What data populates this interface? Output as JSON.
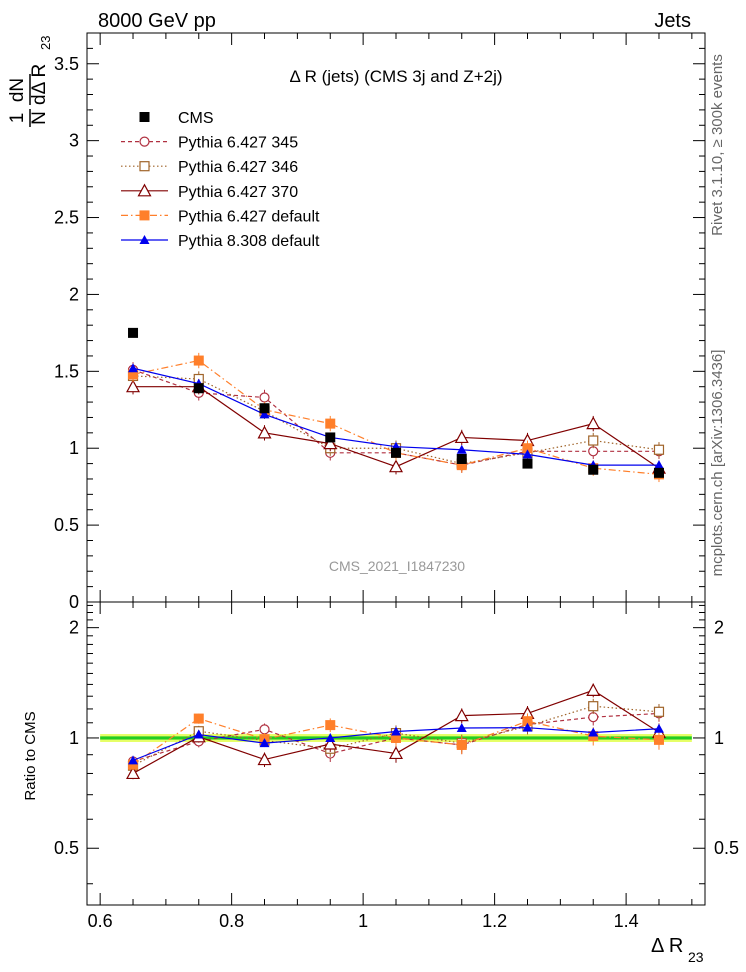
{
  "header": {
    "left": "8000 GeV pp",
    "right": "Jets"
  },
  "side_labels": {
    "rivet": "Rivet 3.1.10, ≥ 300k events",
    "mcplots": "mcplots.cern.ch [arXiv:1306.3436]"
  },
  "chart_data": {
    "type": "scatter",
    "title": "Δ R (jets) (CMS 3j and Z+2j)",
    "analysis_id": "CMS_2021_I1847230",
    "xlabel": "Δ R",
    "xlabel_sub": "23",
    "ylabel": "1/N dN/dΔ R23",
    "ylabel_parts": {
      "one": "1",
      "n": "N",
      "dn": "dN",
      "dr": "dΔ R",
      "sub": "23"
    },
    "ratio_ylabel": "Ratio to CMS",
    "xlim": [
      0.58,
      1.52
    ],
    "ylim": [
      0,
      3.7
    ],
    "ratio_ylim": [
      0.35,
      2.35
    ],
    "x_ticks": [
      0.6,
      0.8,
      1,
      1.2,
      1.4
    ],
    "x_tick_labels": [
      "0.6",
      "0.8",
      "1",
      "1.2",
      "1.4"
    ],
    "y_ticks": [
      0,
      0.5,
      1,
      1.5,
      2,
      2.5,
      3,
      3.5
    ],
    "y_tick_labels": [
      "0",
      "0.5",
      "1",
      "1.5",
      "2",
      "2.5",
      "3",
      "3.5"
    ],
    "ratio_ticks": [
      0.5,
      1,
      2
    ],
    "ratio_tick_labels": [
      "0.5",
      "1",
      "2"
    ],
    "x": [
      0.65,
      0.75,
      0.85,
      0.95,
      1.05,
      1.15,
      1.25,
      1.35,
      1.45
    ],
    "series": [
      {
        "name": "CMS",
        "color": "#000000",
        "marker": "square-filled",
        "line": "none",
        "values": [
          1.75,
          1.39,
          1.26,
          1.07,
          0.97,
          0.93,
          0.9,
          0.86,
          0.84
        ]
      },
      {
        "name": "Pythia 6.427 345",
        "color": "#b03040",
        "marker": "circle-open",
        "line": "dashed",
        "values": [
          1.51,
          1.36,
          1.33,
          0.97,
          0.97,
          0.89,
          0.98,
          0.98,
          0.98
        ],
        "errors": [
          0.05,
          0.05,
          0.05,
          0.05,
          0.05,
          0.05,
          0.05,
          0.05,
          0.05
        ]
      },
      {
        "name": "Pythia 6.427 346",
        "color": "#a0642a",
        "marker": "square-open",
        "line": "dotted",
        "values": [
          1.47,
          1.45,
          1.24,
          1.0,
          1.0,
          0.9,
          0.97,
          1.05,
          0.99
        ],
        "errors": [
          0.05,
          0.05,
          0.05,
          0.05,
          0.05,
          0.05,
          0.05,
          0.05,
          0.05
        ]
      },
      {
        "name": "Pythia 6.427 370",
        "color": "#800000",
        "marker": "triangle-open",
        "line": "solid",
        "values": [
          1.4,
          1.4,
          1.1,
          1.03,
          0.88,
          1.07,
          1.05,
          1.16,
          0.87
        ],
        "errors": [
          0.05,
          0.05,
          0.05,
          0.05,
          0.05,
          0.05,
          0.05,
          0.05,
          0.05
        ]
      },
      {
        "name": "Pythia 6.427 default",
        "color": "#ff7f2a",
        "marker": "square-filled",
        "line": "dashdot",
        "values": [
          1.48,
          1.57,
          1.25,
          1.16,
          0.97,
          0.89,
          1.0,
          0.87,
          0.83
        ],
        "errors": [
          0.05,
          0.05,
          0.05,
          0.05,
          0.05,
          0.05,
          0.05,
          0.05,
          0.05
        ]
      },
      {
        "name": "Pythia 8.308 default",
        "color": "#0000ee",
        "marker": "triangle-filled",
        "line": "solid",
        "values": [
          1.52,
          1.42,
          1.22,
          1.07,
          1.01,
          0.99,
          0.96,
          0.89,
          0.89
        ],
        "errors": [
          0.02,
          0.02,
          0.02,
          0.02,
          0.02,
          0.02,
          0.02,
          0.02,
          0.02
        ]
      }
    ],
    "ratio_band": {
      "center": 1.0,
      "inner": 0.01,
      "outer": 0.025,
      "inner_color": "#22cc22",
      "outer_color": "#e6ff66"
    }
  }
}
